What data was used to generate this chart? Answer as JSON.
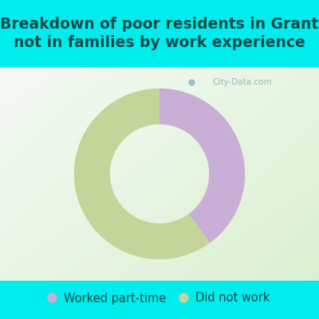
{
  "title": "Breakdown of poor residents in Grant\nnot in families by work experience",
  "slices": [
    {
      "label": "Worked part-time",
      "value": 40,
      "color": "#c9aed6"
    },
    {
      "label": "Did not work",
      "value": 60,
      "color": "#c5d498"
    }
  ],
  "background_color": "#00eded",
  "title_fontsize": 13.5,
  "title_color": "#1a4a4a",
  "legend_fontsize": 10.5,
  "donut_width": 0.42,
  "startangle": 90,
  "watermark": "City-Data.com"
}
